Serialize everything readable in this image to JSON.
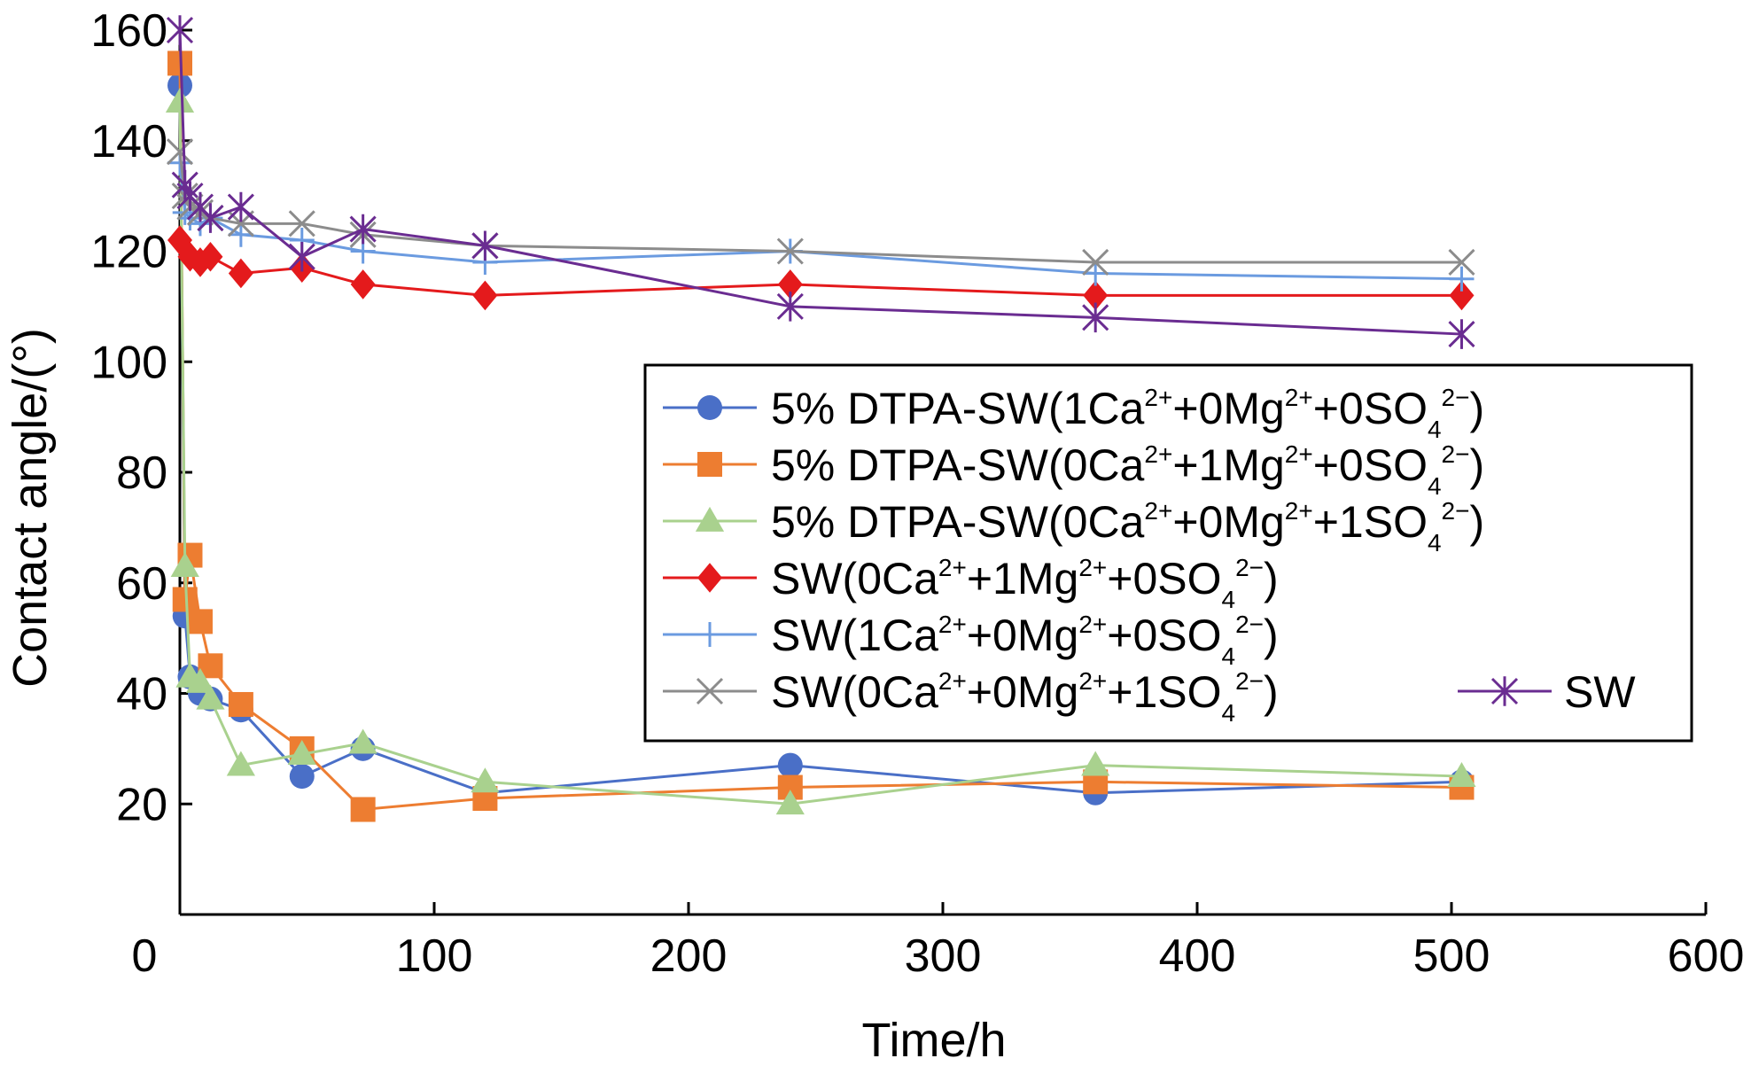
{
  "chart_data": {
    "type": "line",
    "xlabel": "Time/h",
    "ylabel": "Contact angle/(°)",
    "xlim": [
      0,
      600
    ],
    "ylim": [
      0,
      160
    ],
    "xticks": [
      0,
      100,
      200,
      300,
      400,
      500,
      600
    ],
    "yticks": [
      20,
      40,
      60,
      80,
      100,
      120,
      140,
      160
    ],
    "grid": false,
    "legend_position": "center-right",
    "series": [
      {
        "name": "5% DTPA-SW(1Ca2++0Mg2++0SO42−)",
        "legend": [
          {
            "t": "5% DTPA-SW(1Ca"
          },
          {
            "t": "2+",
            "s": "sup"
          },
          {
            "t": "+0Mg"
          },
          {
            "t": "2+",
            "s": "sup"
          },
          {
            "t": "+0SO"
          },
          {
            "t": "4",
            "s": "sub"
          },
          {
            "t": "2−",
            "s": "sup"
          },
          {
            "t": ")"
          }
        ],
        "color": "#4a6fc7",
        "marker": "circle",
        "x": [
          0,
          2,
          4,
          8,
          12,
          24,
          48,
          72,
          120,
          240,
          360,
          504
        ],
        "y": [
          150,
          54,
          43,
          40,
          39,
          37,
          25,
          30,
          22,
          27,
          22,
          24
        ]
      },
      {
        "name": "5% DTPA-SW(0Ca2++1Mg2++0SO42−)",
        "legend": [
          {
            "t": "5% DTPA-SW(0Ca"
          },
          {
            "t": "2+",
            "s": "sup"
          },
          {
            "t": "+1Mg"
          },
          {
            "t": "2+",
            "s": "sup"
          },
          {
            "t": "+0SO"
          },
          {
            "t": "4",
            "s": "sub"
          },
          {
            "t": "2−",
            "s": "sup"
          },
          {
            "t": ")"
          }
        ],
        "color": "#ed7d31",
        "marker": "square",
        "x": [
          0,
          2,
          4,
          8,
          12,
          24,
          48,
          72,
          120,
          240,
          360,
          504
        ],
        "y": [
          154,
          57,
          65,
          53,
          45,
          38,
          30,
          19,
          21,
          23,
          24,
          23
        ]
      },
      {
        "name": "5% DTPA-SW(0Ca2++0Mg2++1SO42−)",
        "legend": [
          {
            "t": "5% DTPA-SW(0Ca"
          },
          {
            "t": "2+",
            "s": "sup"
          },
          {
            "t": "+0Mg"
          },
          {
            "t": "2+",
            "s": "sup"
          },
          {
            "t": "+1SO"
          },
          {
            "t": "4",
            "s": "sub"
          },
          {
            "t": "2−",
            "s": "sup"
          },
          {
            "t": ")"
          }
        ],
        "color": "#a9d18e",
        "marker": "triangle",
        "x": [
          0,
          2,
          4,
          8,
          12,
          24,
          48,
          72,
          120,
          240,
          360,
          504
        ],
        "y": [
          147,
          63,
          43,
          42,
          39,
          27,
          29,
          31,
          24,
          20,
          27,
          25
        ]
      },
      {
        "name": "SW(0Ca2++1Mg2++0SO42−)",
        "legend": [
          {
            "t": "SW(0Ca"
          },
          {
            "t": "2+",
            "s": "sup"
          },
          {
            "t": "+1Mg"
          },
          {
            "t": "2+",
            "s": "sup"
          },
          {
            "t": "+0SO"
          },
          {
            "t": "4",
            "s": "sub"
          },
          {
            "t": "2−",
            "s": "sup"
          },
          {
            "t": ")"
          }
        ],
        "color": "#e41a1c",
        "marker": "diamond",
        "x": [
          0,
          4,
          8,
          12,
          24,
          48,
          72,
          120,
          240,
          360,
          504
        ],
        "y": [
          122,
          119,
          118,
          119,
          116,
          117,
          114,
          112,
          114,
          112,
          112
        ]
      },
      {
        "name": "SW(1Ca2++0Mg2++0SO42−)",
        "legend": [
          {
            "t": "SW(1Ca"
          },
          {
            "t": "2+",
            "s": "sup"
          },
          {
            "t": "+0Mg"
          },
          {
            "t": "2+",
            "s": "sup"
          },
          {
            "t": "+0SO"
          },
          {
            "t": "4",
            "s": "sub"
          },
          {
            "t": "2−",
            "s": "sup"
          },
          {
            "t": ")"
          }
        ],
        "color": "#6b9be0",
        "marker": "plus",
        "x": [
          0,
          2,
          4,
          8,
          12,
          24,
          48,
          72,
          120,
          240,
          360,
          504
        ],
        "y": [
          136,
          127,
          126,
          125,
          126,
          123,
          122,
          120,
          118,
          120,
          116,
          115
        ]
      },
      {
        "name": "SW(0Ca2++0Mg2++1SO42−)",
        "legend": [
          {
            "t": "SW(0Ca"
          },
          {
            "t": "2+",
            "s": "sup"
          },
          {
            "t": "+0Mg"
          },
          {
            "t": "2+",
            "s": "sup"
          },
          {
            "t": "+1SO"
          },
          {
            "t": "4",
            "s": "sub"
          },
          {
            "t": "2−",
            "s": "sup"
          },
          {
            "t": ")"
          }
        ],
        "color": "#8c8c8c",
        "marker": "x",
        "x": [
          0,
          2,
          4,
          8,
          12,
          24,
          48,
          72,
          120,
          240,
          360,
          504
        ],
        "y": [
          138,
          130,
          128,
          127,
          126,
          125,
          125,
          123,
          121,
          120,
          118,
          118
        ]
      },
      {
        "name": "SW",
        "legend": [
          {
            "t": "SW"
          }
        ],
        "color": "#6a2c91",
        "marker": "asterisk",
        "x": [
          0,
          2,
          4,
          8,
          12,
          24,
          48,
          72,
          120,
          240,
          360,
          504
        ],
        "y": [
          160,
          132,
          130,
          128,
          126,
          128,
          119,
          124,
          121,
          110,
          108,
          105
        ]
      }
    ]
  }
}
